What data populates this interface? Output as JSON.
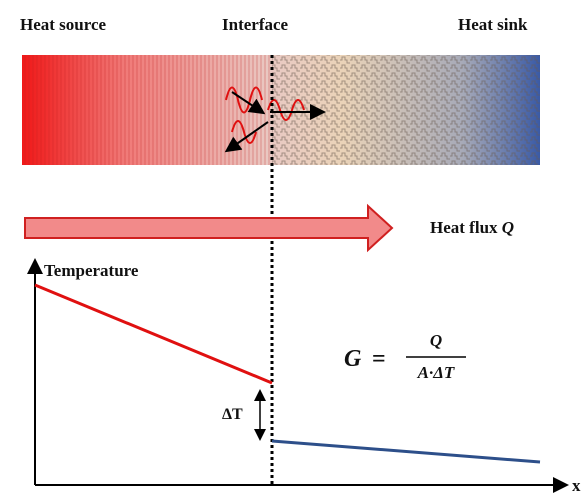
{
  "labels": {
    "heat_source": "Heat source",
    "interface": "Interface",
    "heat_sink": "Heat sink",
    "heat_flux": "Heat flux",
    "heat_flux_symbol": "Q",
    "y_axis": "Temperature",
    "x_axis": "x",
    "delta_t": "ΔT"
  },
  "formula": {
    "lhs": "G",
    "equals": "=",
    "numerator": "Q",
    "denominator": "A·ΔT"
  }
}
